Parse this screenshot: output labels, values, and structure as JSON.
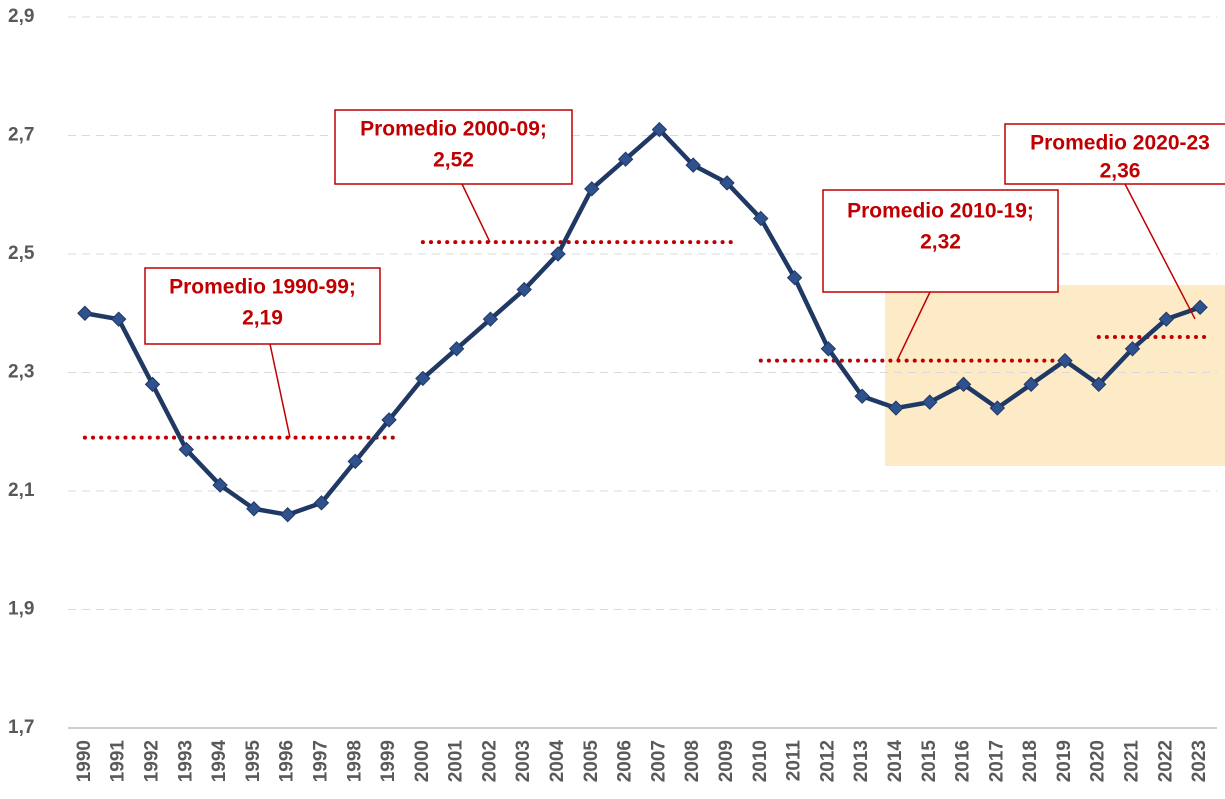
{
  "chart_data": {
    "type": "line",
    "categories": [
      "1990",
      "1991",
      "1992",
      "1993",
      "1994",
      "1995",
      "1996",
      "1997",
      "1998",
      "1999",
      "2000",
      "2001",
      "2002",
      "2003",
      "2004",
      "2005",
      "2006",
      "2007",
      "2008",
      "2009",
      "2010",
      "2011",
      "2012",
      "2013",
      "2014",
      "2015",
      "2016",
      "2017",
      "2018",
      "2019",
      "2020",
      "2021",
      "2022",
      "2023"
    ],
    "series": [
      {
        "color": "#203864",
        "marker_color": "#2f528f",
        "values": [
          2.4,
          2.39,
          2.28,
          2.17,
          2.11,
          2.07,
          2.06,
          2.08,
          2.15,
          2.22,
          2.29,
          2.34,
          2.39,
          2.44,
          2.5,
          2.61,
          2.66,
          2.71,
          2.65,
          2.62,
          2.56,
          2.46,
          2.34,
          2.26,
          2.24,
          2.25,
          2.28,
          2.24,
          2.28,
          2.32,
          2.28,
          2.34,
          2.39,
          2.41
        ]
      }
    ],
    "ylim": [
      1.7,
      2.9
    ],
    "yticks": [
      {
        "value": 1.7,
        "label": "1,7"
      },
      {
        "value": 1.9,
        "label": "1,9"
      },
      {
        "value": 2.1,
        "label": "2,1"
      },
      {
        "value": 2.3,
        "label": "2,3"
      },
      {
        "value": 2.5,
        "label": "2,5"
      },
      {
        "value": 2.7,
        "label": "2,7"
      },
      {
        "value": 2.9,
        "label": "2,9"
      }
    ],
    "grid": true,
    "annotations": [
      {
        "text": "Promedio 1990-99;",
        "value": 2.19,
        "value_label": "2,19",
        "from": "1990",
        "to": "1999",
        "color": "#c00000"
      },
      {
        "text": "Promedio 2000-09;",
        "value": 2.52,
        "value_label": "2,52",
        "from": "2000",
        "to": "2009",
        "color": "#c00000"
      },
      {
        "text": "Promedio 2010-19;",
        "value": 2.32,
        "value_label": "2,32",
        "from": "2010",
        "to": "2019",
        "color": "#c00000"
      },
      {
        "text": "Promedio 2020-23",
        "value": 2.36,
        "value_label": "2,36",
        "from": "2020",
        "to": "2023",
        "color": "#c00000"
      }
    ]
  }
}
